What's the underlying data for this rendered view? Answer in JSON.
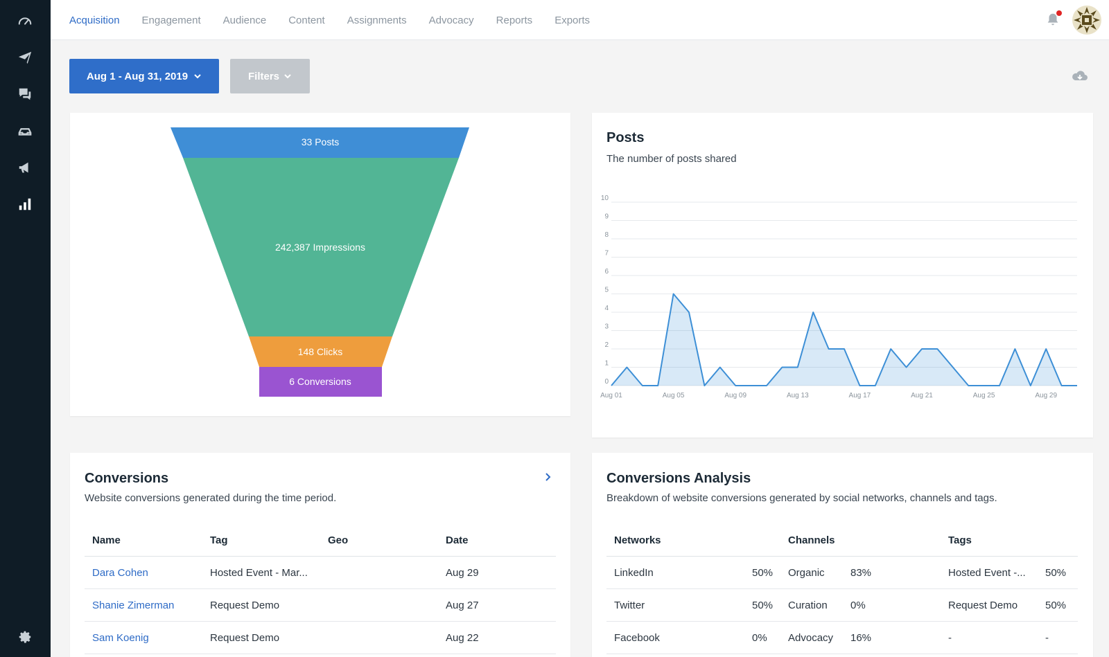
{
  "nav": {
    "tabs": [
      "Acquisition",
      "Engagement",
      "Audience",
      "Content",
      "Assignments",
      "Advocacy",
      "Reports",
      "Exports"
    ],
    "active_tab": "Acquisition"
  },
  "sidebar": {
    "icons": [
      "speedometer-icon",
      "paper-plane-icon",
      "chat-bubbles-icon",
      "inbox-icon",
      "megaphone-icon",
      "bar-chart-icon",
      "gear-icon"
    ]
  },
  "toolbar": {
    "date_range": "Aug 1 - Aug 31, 2019",
    "filters_label": "Filters"
  },
  "funnel": {
    "stages": [
      "33 Posts",
      "242,387 Impressions",
      "148 Clicks",
      "6 Conversions"
    ],
    "colors": [
      "#3f8ed6",
      "#52b595",
      "#ee9d3d",
      "#9a54d1"
    ]
  },
  "posts_card": {
    "title": "Posts",
    "subtitle": "The number of posts shared"
  },
  "chart_data": {
    "type": "area",
    "title": "Posts",
    "subtitle": "The number of posts shared",
    "xlabel": "",
    "ylabel": "",
    "ylim": [
      0,
      10
    ],
    "y_ticks": [
      "0",
      "1",
      "2",
      "3",
      "4",
      "5",
      "6",
      "7",
      "8",
      "9",
      "10"
    ],
    "x_tick_labels": [
      "Aug 01",
      "Aug 05",
      "Aug 09",
      "Aug 13",
      "Aug 17",
      "Aug 21",
      "Aug 25",
      "Aug 29"
    ],
    "x": [
      "Aug 01",
      "Aug 02",
      "Aug 03",
      "Aug 04",
      "Aug 05",
      "Aug 06",
      "Aug 07",
      "Aug 08",
      "Aug 09",
      "Aug 10",
      "Aug 11",
      "Aug 12",
      "Aug 13",
      "Aug 14",
      "Aug 15",
      "Aug 16",
      "Aug 17",
      "Aug 18",
      "Aug 19",
      "Aug 20",
      "Aug 21",
      "Aug 22",
      "Aug 23",
      "Aug 24",
      "Aug 25",
      "Aug 26",
      "Aug 27",
      "Aug 28",
      "Aug 29",
      "Aug 30",
      "Aug 31"
    ],
    "values": [
      0,
      1,
      0,
      0,
      5,
      4,
      0,
      1,
      0,
      0,
      0,
      1,
      1,
      4,
      2,
      2,
      0,
      0,
      2,
      1,
      2,
      2,
      1,
      0,
      0,
      0,
      2,
      0,
      2,
      0,
      0
    ],
    "color": "#3d8fd6",
    "grid": true
  },
  "conversions": {
    "title": "Conversions",
    "subtitle": "Website conversions generated during the time period.",
    "headers": [
      "Name",
      "Tag",
      "Geo",
      "Date"
    ],
    "rows": [
      {
        "name": "Dara Cohen",
        "tag": "Hosted Event - Mar...",
        "geo": "",
        "date": "Aug 29"
      },
      {
        "name": "Shanie Zimerman",
        "tag": "Request Demo",
        "geo": "",
        "date": "Aug 27"
      },
      {
        "name": "Sam Koenig",
        "tag": "Request Demo",
        "geo": "",
        "date": "Aug 22"
      }
    ]
  },
  "analysis": {
    "title": "Conversions Analysis",
    "subtitle": "Breakdown of website conversions generated by social networks, channels and tags.",
    "headers": [
      "Networks",
      "Channels",
      "Tags"
    ],
    "rows": [
      {
        "network": "LinkedIn",
        "network_pct": "50%",
        "channel": "Organic",
        "channel_pct": "83%",
        "tag": "Hosted Event -...",
        "tag_pct": "50%"
      },
      {
        "network": "Twitter",
        "network_pct": "50%",
        "channel": "Curation",
        "channel_pct": "0%",
        "tag": "Request Demo",
        "tag_pct": "50%"
      },
      {
        "network": "Facebook",
        "network_pct": "0%",
        "channel": "Advocacy",
        "channel_pct": "16%",
        "tag": "-",
        "tag_pct": "-"
      }
    ]
  }
}
